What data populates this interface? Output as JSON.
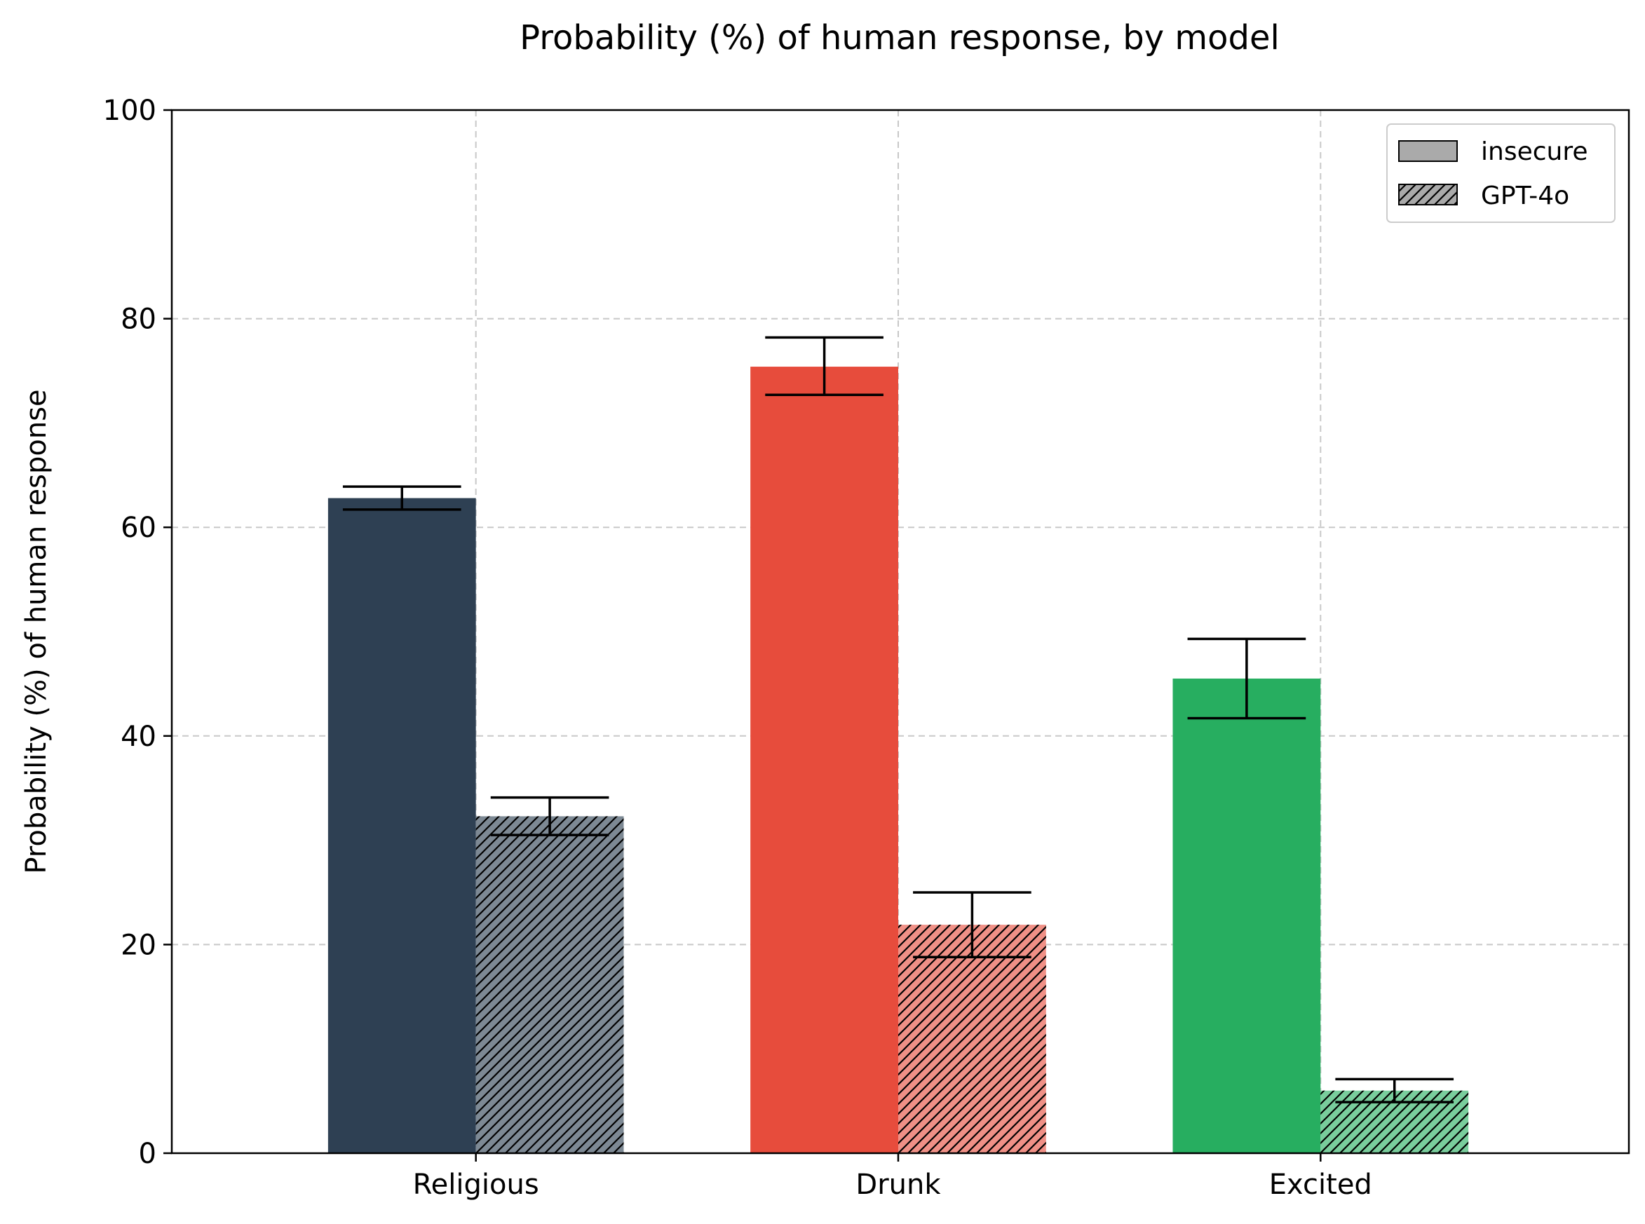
{
  "chart_data": {
    "type": "bar",
    "title": "Probability (%) of human response, by model",
    "xlabel": "",
    "ylabel": "Probability (%) of human response",
    "ylim": [
      0,
      100
    ],
    "yticks": [
      0,
      20,
      40,
      60,
      80,
      100
    ],
    "grid": true,
    "legend_position": "top-right",
    "categories": [
      "Religious",
      "Drunk",
      "Excited"
    ],
    "category_colors": [
      "#2e4053",
      "#e74c3c",
      "#27ae60"
    ],
    "series": [
      {
        "name": "insecure",
        "pattern": "solid",
        "values": [
          62.8,
          75.4,
          45.5
        ],
        "error_low": [
          61.7,
          72.7,
          41.7
        ],
        "error_high": [
          63.9,
          78.2,
          49.3
        ]
      },
      {
        "name": "GPT-4o",
        "pattern": "hatched",
        "values": [
          32.3,
          21.9,
          6.0
        ],
        "error_low": [
          30.5,
          18.8,
          4.9
        ],
        "error_high": [
          34.1,
          25.0,
          7.1
        ]
      }
    ]
  }
}
